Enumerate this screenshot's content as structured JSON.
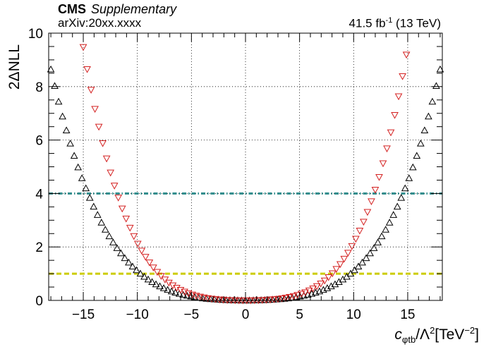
{
  "header": {
    "experiment": "CMS",
    "tag": "Supplementary",
    "reference": "arXiv:20xx.xxxx",
    "lumi_value": "41.5 fb",
    "lumi_exp": "-1",
    "lumi_energy": "(13 TeV)"
  },
  "axis_labels": {
    "y": "2ΔNLL",
    "x_symbol": "c",
    "x_sub": "φtb",
    "x_rest": "/Λ",
    "x_sq": "2",
    "x_unit_open": "[TeV",
    "x_unit_exp": "−2",
    "x_unit_close": "]"
  },
  "chart_data": {
    "type": "scatter",
    "title": "",
    "xlabel": "cφtb/Λ²[TeV⁻²]",
    "ylabel": "2ΔNLL",
    "xlim": [
      -18.2,
      18.2
    ],
    "ylim": [
      0,
      10
    ],
    "grid": true,
    "x_ticks": [
      -15,
      -10,
      -5,
      0,
      5,
      10,
      15
    ],
    "y_ticks": [
      0,
      2,
      4,
      6,
      8,
      10
    ],
    "reference_lines": [
      {
        "y": 4,
        "style": "dash-dot",
        "color": "#2e8b8b"
      },
      {
        "y": 1,
        "style": "dashed",
        "color": "#cccc00"
      }
    ],
    "series": [
      {
        "marker": "triangle-up",
        "color": "#000000",
        "x_start": -18.0,
        "x_step": 0.36,
        "n_points": 101,
        "a2": 0.004,
        "a4": 7e-05
      },
      {
        "marker": "triangle-down",
        "color": "#d42020",
        "x_start": -15.0,
        "x_step": 0.36,
        "n_points": 85,
        "a2": 0.005,
        "a4": 0.000165
      }
    ]
  }
}
